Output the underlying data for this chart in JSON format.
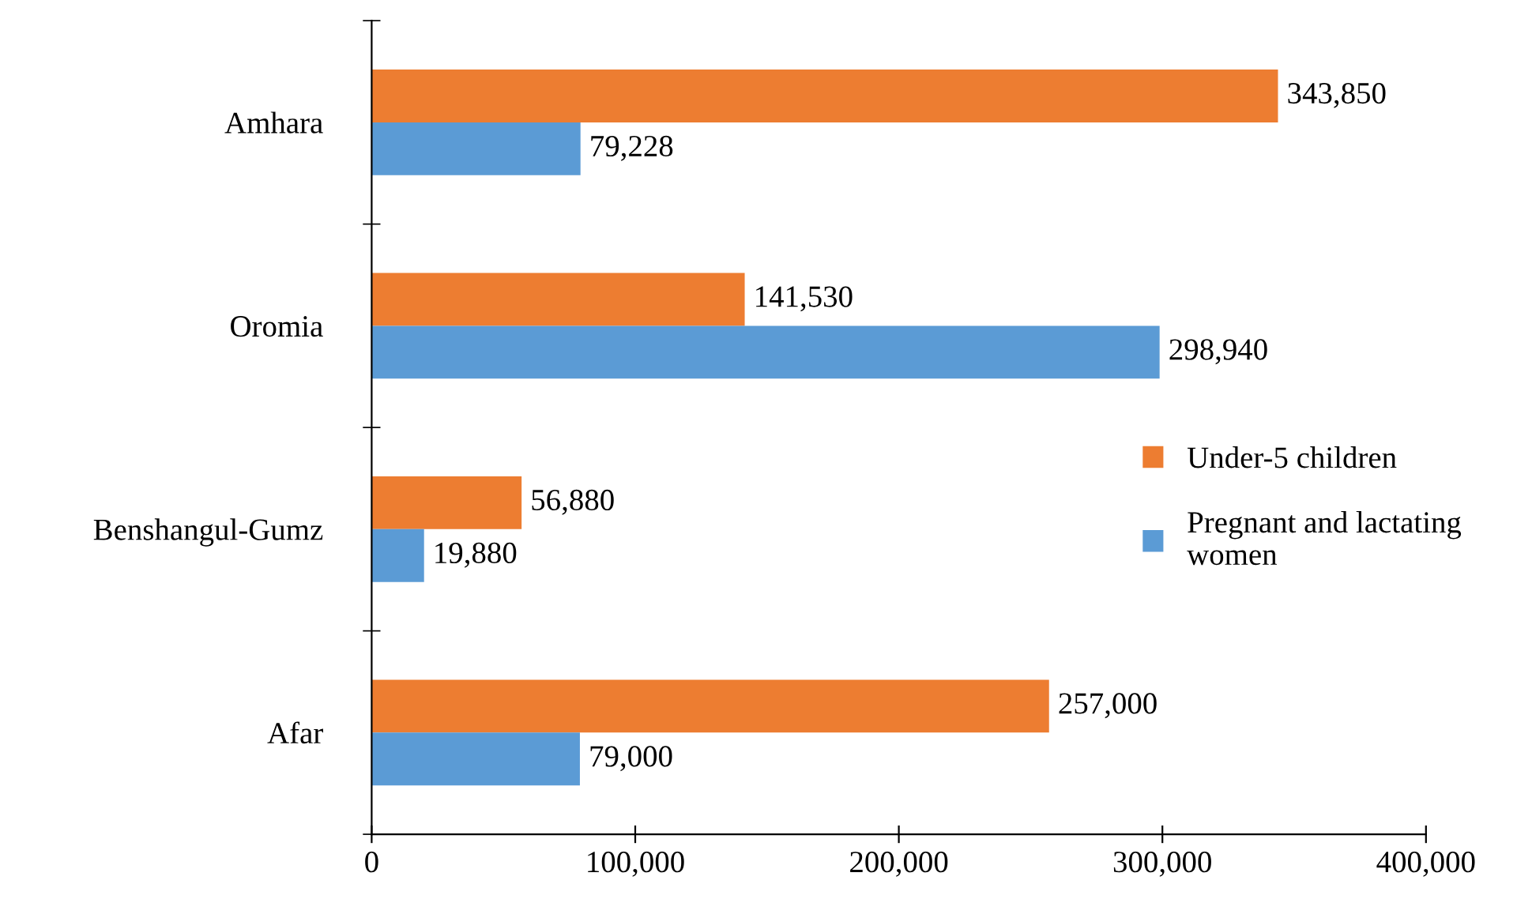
{
  "chart_data": {
    "type": "bar",
    "orientation": "horizontal",
    "categories": [
      "Amhara",
      "Oromia",
      "Benshangul-Gumz",
      "Afar"
    ],
    "series": [
      {
        "name": "Under-5 children",
        "color": "#ed7d31",
        "values": [
          343850,
          141530,
          56880,
          257000
        ],
        "value_labels": [
          "343,850",
          "141,530",
          "56,880",
          "257,000"
        ]
      },
      {
        "name": "Pregnant and lactating women",
        "color": "#5b9bd5",
        "values": [
          79228,
          298940,
          19880,
          79000
        ],
        "value_labels": [
          "79,228",
          "298,940",
          "19,880",
          "79,000"
        ]
      }
    ],
    "xlim": [
      0,
      400000
    ],
    "xticks": [
      0,
      {
        "value": 100000,
        "label": "100,000"
      },
      {
        "value": 200000,
        "label": "200,000"
      },
      {
        "value": 300000,
        "label": "300,000"
      },
      {
        "value": 400000,
        "label": "400,000"
      }
    ],
    "grid": false,
    "legend": "right"
  }
}
